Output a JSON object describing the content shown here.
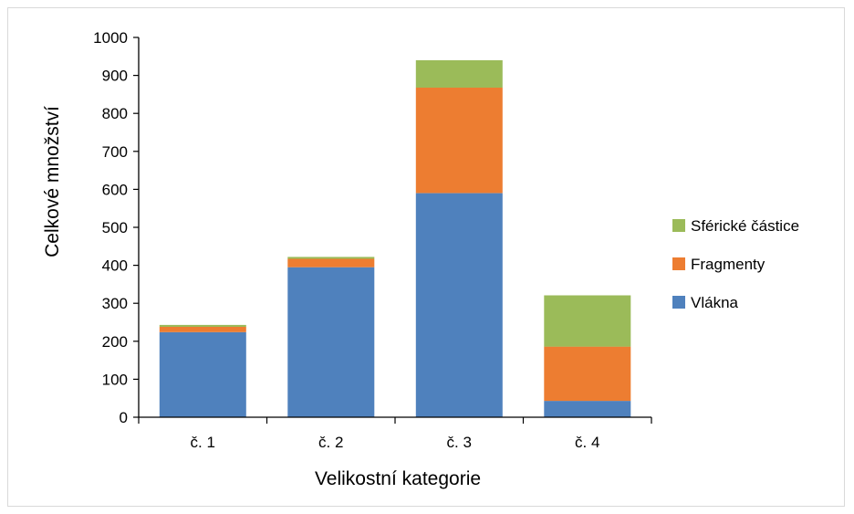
{
  "chart_data": {
    "type": "bar",
    "stacked": true,
    "categories": [
      "č. 1",
      "č. 2",
      "č. 3",
      "č. 4"
    ],
    "series": [
      {
        "name": "Vlákna",
        "color": "#4F81BD",
        "values": [
          224,
          395,
          590,
          43
        ]
      },
      {
        "name": "Fragmenty",
        "color": "#ED7D31",
        "values": [
          14,
          22,
          278,
          143
        ]
      },
      {
        "name": "Sférické částice",
        "color": "#9BBB59",
        "values": [
          5,
          5,
          72,
          135
        ]
      }
    ],
    "title": "",
    "xlabel": "Velikostní kategorie",
    "ylabel": "Celkové množství",
    "ylim": [
      0,
      1000
    ],
    "yticks": [
      0,
      100,
      200,
      300,
      400,
      500,
      600,
      700,
      800,
      900,
      1000
    ],
    "grid": false,
    "legend": "right"
  }
}
